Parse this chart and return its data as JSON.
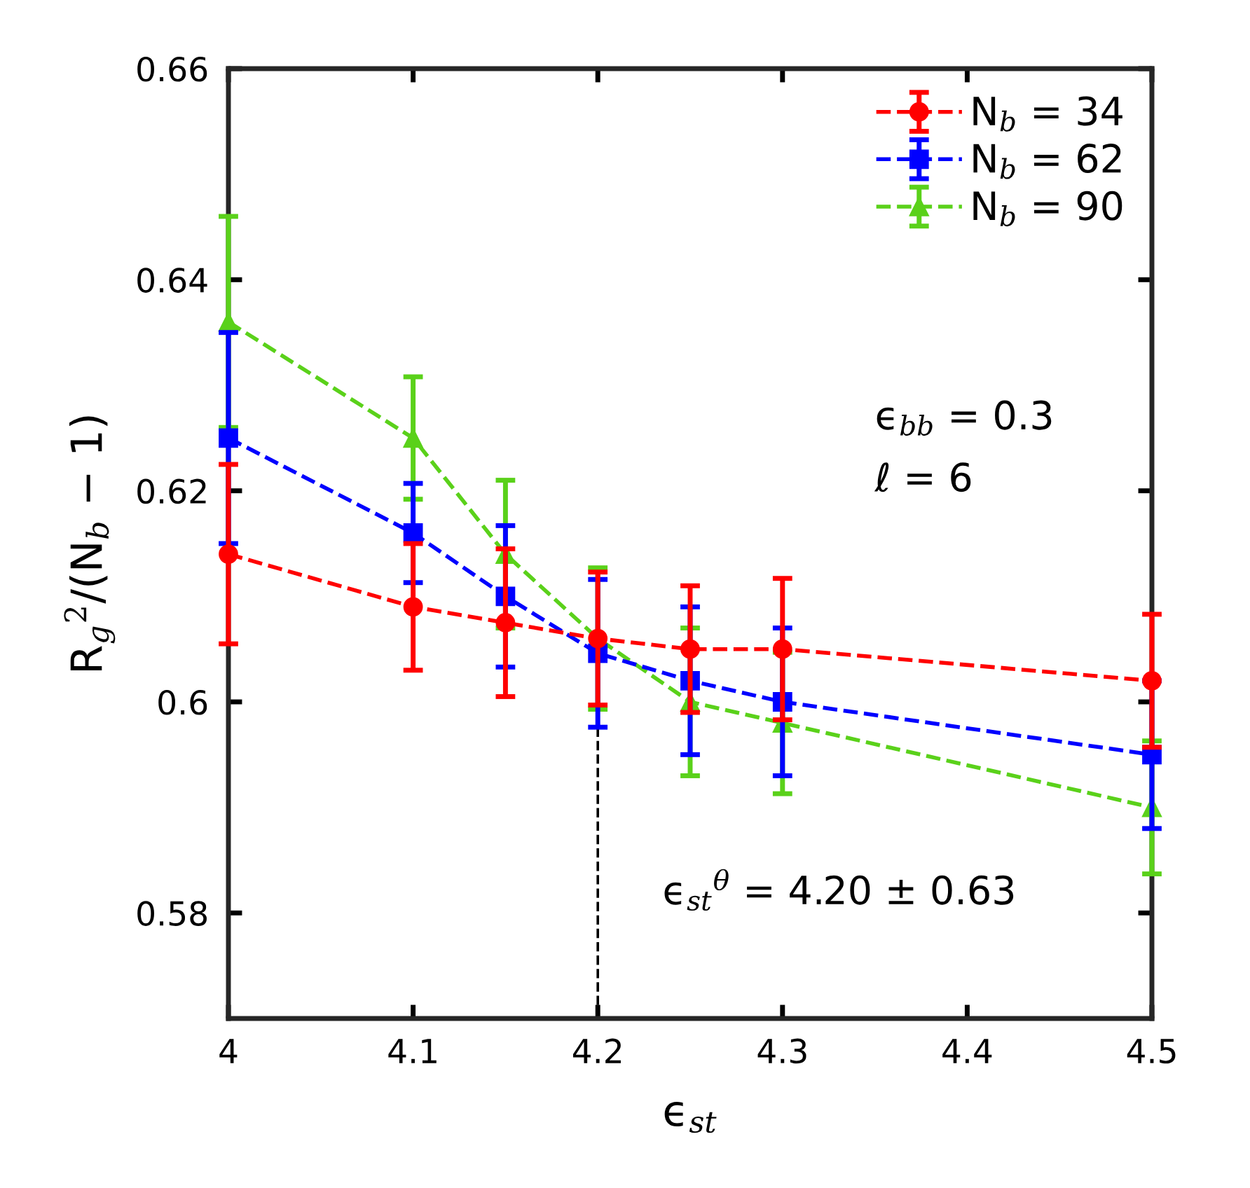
{
  "chart_data": {
    "type": "line",
    "xlabel": "ϵ$_{st}$",
    "ylabel": "R$_{g}$$^{2}$/(N$_{b}$ − 1)",
    "x": [
      4,
      4.1,
      4.15,
      4.2,
      4.25,
      4.3,
      4.5
    ],
    "series": [
      {
        "name": "N$_{b}$ = 34",
        "color": "#ff0000",
        "marker": "circle",
        "values": [
          0.614,
          0.609,
          0.6075,
          0.606,
          0.605,
          0.605,
          0.602
        ],
        "errors": [
          0.0085,
          0.006,
          0.007,
          0.0063,
          0.006,
          0.0067,
          0.0063
        ]
      },
      {
        "name": "N$_{b}$ = 62",
        "color": "#0000ff",
        "marker": "square",
        "values": [
          0.625,
          0.616,
          0.61,
          0.6046,
          0.602,
          0.6,
          0.595
        ],
        "errors": [
          0.01,
          0.0047,
          0.0067,
          0.007,
          0.007,
          0.007,
          0.007
        ]
      },
      {
        "name": "N$_{b}$ = 90",
        "color": "#5ad11a",
        "marker": "triangle",
        "values": [
          0.636,
          0.625,
          0.614,
          0.606,
          0.6,
          0.598,
          0.59
        ],
        "errors": [
          0.01,
          0.0058,
          0.007,
          0.0067,
          0.007,
          0.0067,
          0.0063
        ]
      }
    ],
    "line_style": "dashed",
    "legend": "top right",
    "xlim": [
      4,
      4.5
    ],
    "xticks": [
      4,
      4.1,
      4.2,
      4.3,
      4.4,
      4.5
    ],
    "ylim": [
      0.57,
      0.66
    ],
    "yticks": [
      0.58,
      0.6,
      0.62,
      0.64,
      0.66
    ],
    "ref_lines": [
      {
        "axis": "x",
        "value": 4.2,
        "color": "#000000",
        "line_style": "dashed"
      }
    ],
    "annotations": [
      "ϵ$_{bb}$ = 0.3",
      "ℓ = 6",
      "ϵ$_{st}$$^{θ}$ = 4.20 ± 0.63"
    ]
  }
}
